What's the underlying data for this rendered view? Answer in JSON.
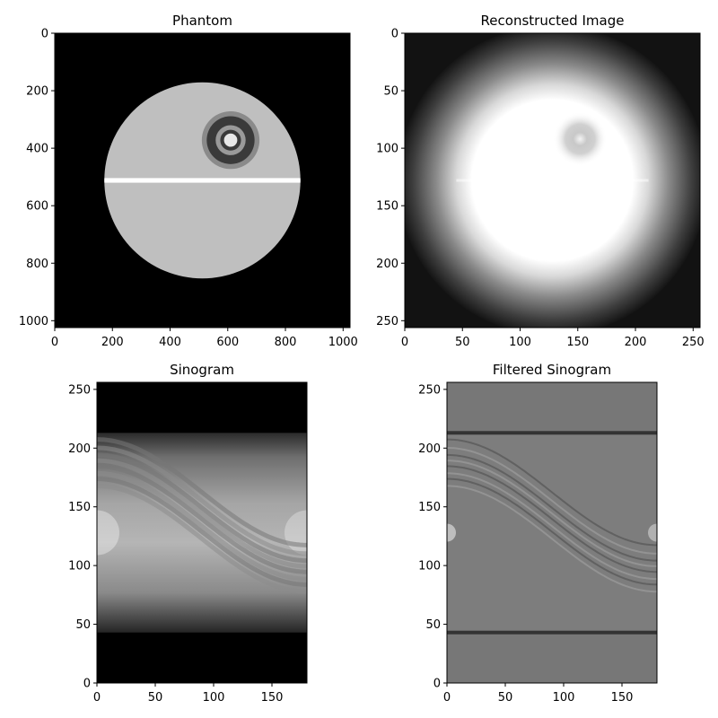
{
  "chart_data": [
    {
      "type": "heatmap",
      "id": "phantom",
      "title": "Phantom",
      "xlim": [
        0,
        1024
      ],
      "ylim": [
        1024,
        0
      ],
      "xticks": [
        0,
        200,
        400,
        600,
        800,
        1000
      ],
      "yticks": [
        0,
        200,
        400,
        600,
        800,
        1000
      ],
      "colormap": "gray",
      "background": "#000000",
      "content": {
        "disk": {
          "cx": 512,
          "cy": 512,
          "r": 340,
          "color": "#bfbfbf"
        },
        "band": {
          "y": 512,
          "thickness": 16,
          "color": "#ffffff"
        },
        "rings": [
          {
            "cx": 610,
            "cy": 372,
            "r": 100,
            "color": "#8a8a8a"
          },
          {
            "cx": 610,
            "cy": 372,
            "r": 83,
            "color": "#3a3a3a"
          },
          {
            "cx": 610,
            "cy": 372,
            "r": 52,
            "color": "#9a9a9a"
          },
          {
            "cx": 610,
            "cy": 372,
            "r": 36,
            "color": "#3a3a3a"
          },
          {
            "cx": 610,
            "cy": 372,
            "r": 23,
            "color": "#e8e8e8"
          }
        ]
      }
    },
    {
      "type": "heatmap",
      "id": "reconstructed",
      "title": "Reconstructed Image",
      "xlim": [
        0,
        256
      ],
      "ylim": [
        256,
        0
      ],
      "xticks": [
        0,
        50,
        100,
        150,
        200,
        250
      ],
      "yticks": [
        0,
        50,
        100,
        150,
        200,
        250
      ],
      "colormap": "gray",
      "content": {
        "blob_center": [
          128,
          128
        ],
        "blob_radius": 85,
        "feature_center": [
          152,
          92
        ]
      }
    },
    {
      "type": "heatmap",
      "id": "sinogram",
      "title": "Sinogram",
      "xlim": [
        0,
        180
      ],
      "ylim": [
        0,
        256
      ],
      "xticks": [
        0,
        50,
        100,
        150
      ],
      "yticks": [
        0,
        50,
        100,
        150,
        200,
        250
      ],
      "colormap": "gray",
      "content": {
        "support": [
          43,
          213
        ],
        "center": 128,
        "ring_amplitude": 60,
        "ring_offset": 30
      }
    },
    {
      "type": "heatmap",
      "id": "filtered",
      "title": "Filtered Sinogram",
      "xlim": [
        0,
        180
      ],
      "ylim": [
        0,
        256
      ],
      "xticks": [
        0,
        50,
        100,
        150
      ],
      "yticks": [
        0,
        50,
        100,
        150,
        200,
        250
      ],
      "colormap": "gray",
      "content": {
        "support": [
          43,
          213
        ],
        "center": 128,
        "ring_amplitude": 60,
        "ring_offset": 30
      }
    }
  ]
}
